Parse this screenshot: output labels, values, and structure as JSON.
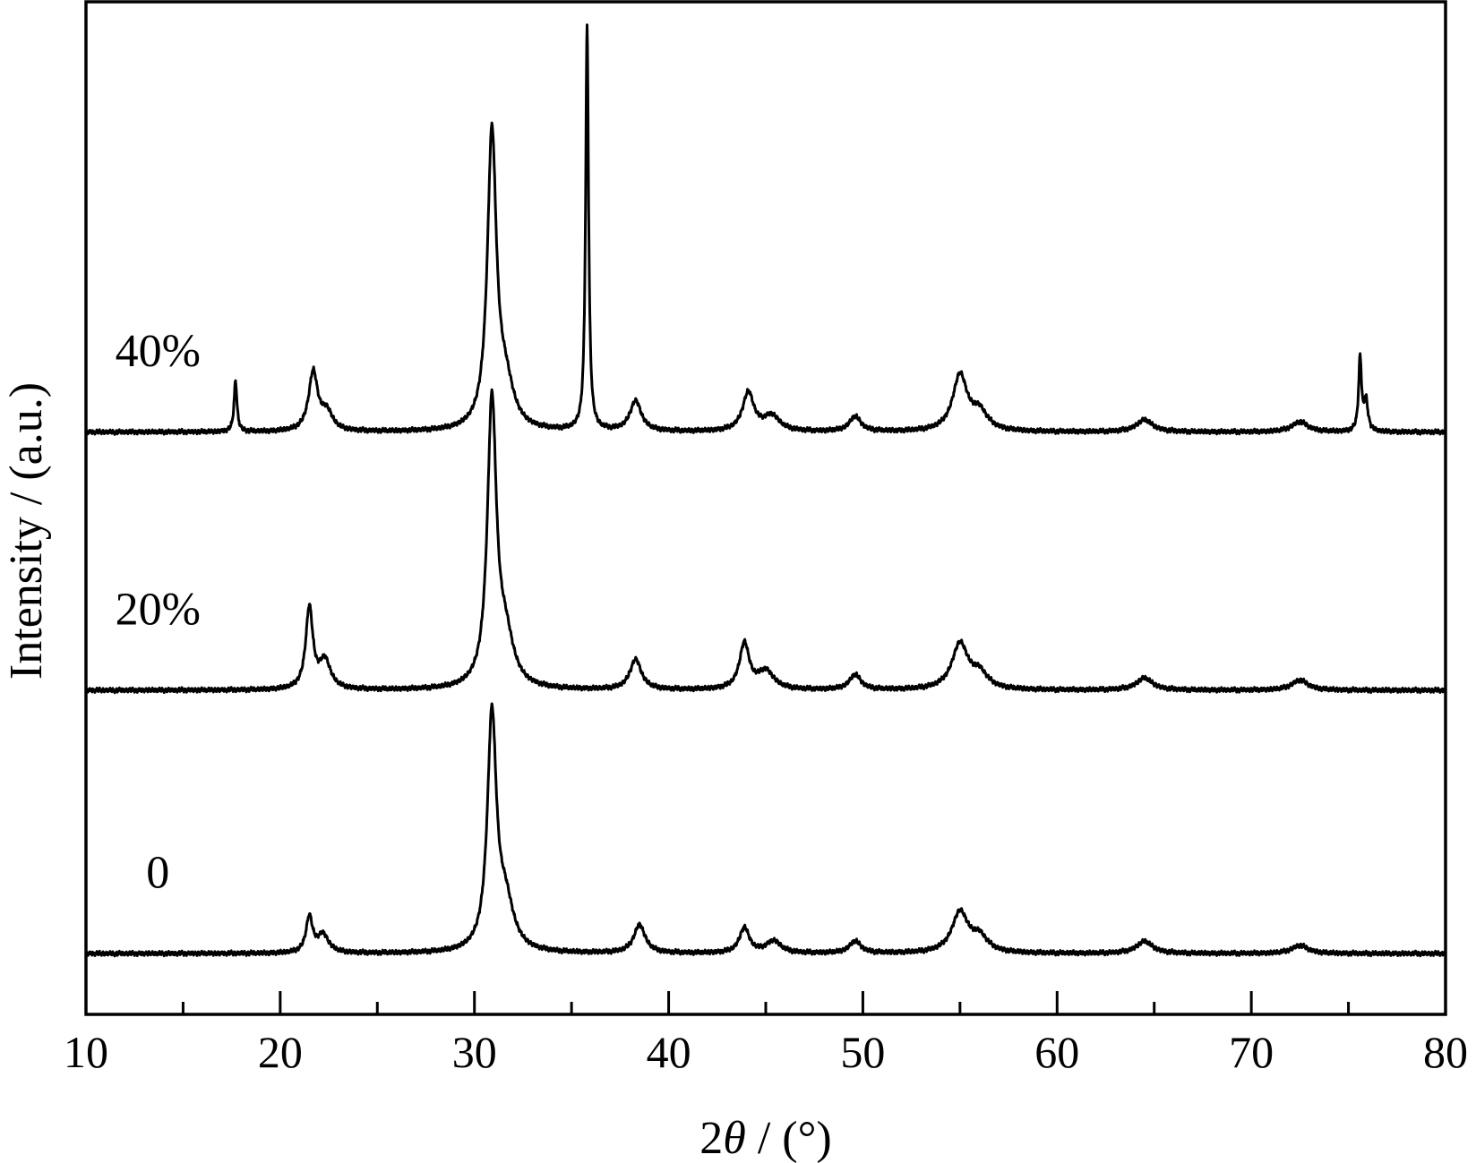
{
  "chart_data": {
    "type": "line",
    "xlabel": {
      "prefix": "2",
      "symbol": "θ",
      "suffix": " / (°)"
    },
    "ylabel": "Intensity / (a.u.)",
    "xlim": [
      10,
      80
    ],
    "x_major_ticks": [
      10,
      20,
      30,
      40,
      50,
      60,
      70,
      80
    ],
    "x_minor_ticks": [
      15,
      25,
      35,
      45,
      55,
      65,
      75
    ],
    "y_ticks_labeled": false,
    "grid": false,
    "legend": "none (series labeled inline)",
    "line_color": "#000000",
    "series": [
      {
        "name": "0",
        "offset": 0.6,
        "peaks": [
          {
            "x": 21.5,
            "height": 0.35,
            "width": 0.2
          },
          {
            "x": 22.2,
            "height": 0.18,
            "width": 0.35
          },
          {
            "x": 30.9,
            "height": 2.3,
            "width": 0.28
          },
          {
            "x": 31.6,
            "height": 0.45,
            "width": 0.5
          },
          {
            "x": 38.5,
            "height": 0.28,
            "width": 0.35
          },
          {
            "x": 43.9,
            "height": 0.25,
            "width": 0.3
          },
          {
            "x": 45.4,
            "height": 0.12,
            "width": 0.45
          },
          {
            "x": 49.6,
            "height": 0.12,
            "width": 0.35
          },
          {
            "x": 55.0,
            "height": 0.4,
            "width": 0.5
          },
          {
            "x": 56.0,
            "height": 0.15,
            "width": 0.5
          },
          {
            "x": 64.5,
            "height": 0.12,
            "width": 0.5
          },
          {
            "x": 72.5,
            "height": 0.08,
            "width": 0.5
          }
        ]
      },
      {
        "name": "20%",
        "offset": 3.2,
        "peaks": [
          {
            "x": 21.5,
            "height": 0.8,
            "width": 0.22
          },
          {
            "x": 22.3,
            "height": 0.28,
            "width": 0.35
          },
          {
            "x": 30.9,
            "height": 2.8,
            "width": 0.28
          },
          {
            "x": 31.6,
            "height": 0.45,
            "width": 0.5
          },
          {
            "x": 38.3,
            "height": 0.3,
            "width": 0.35
          },
          {
            "x": 43.9,
            "height": 0.45,
            "width": 0.3
          },
          {
            "x": 45.0,
            "height": 0.18,
            "width": 0.5
          },
          {
            "x": 49.6,
            "height": 0.15,
            "width": 0.35
          },
          {
            "x": 55.0,
            "height": 0.45,
            "width": 0.5
          },
          {
            "x": 56.0,
            "height": 0.15,
            "width": 0.5
          },
          {
            "x": 64.5,
            "height": 0.12,
            "width": 0.5
          },
          {
            "x": 72.5,
            "height": 0.1,
            "width": 0.5
          }
        ]
      },
      {
        "name": "40%",
        "offset": 5.75,
        "peaks": [
          {
            "x": 17.7,
            "height": 0.5,
            "width": 0.09
          },
          {
            "x": 21.7,
            "height": 0.58,
            "width": 0.28
          },
          {
            "x": 22.4,
            "height": 0.18,
            "width": 0.35
          },
          {
            "x": 30.9,
            "height": 2.9,
            "width": 0.28
          },
          {
            "x": 31.6,
            "height": 0.4,
            "width": 0.5
          },
          {
            "x": 35.8,
            "height": 4.0,
            "width": 0.09
          },
          {
            "x": 38.3,
            "height": 0.3,
            "width": 0.35
          },
          {
            "x": 44.1,
            "height": 0.38,
            "width": 0.35
          },
          {
            "x": 45.3,
            "height": 0.15,
            "width": 0.5
          },
          {
            "x": 49.6,
            "height": 0.15,
            "width": 0.35
          },
          {
            "x": 55.0,
            "height": 0.55,
            "width": 0.45
          },
          {
            "x": 56.0,
            "height": 0.18,
            "width": 0.5
          },
          {
            "x": 64.5,
            "height": 0.12,
            "width": 0.5
          },
          {
            "x": 72.5,
            "height": 0.1,
            "width": 0.5
          },
          {
            "x": 75.6,
            "height": 0.72,
            "width": 0.09
          },
          {
            "x": 75.9,
            "height": 0.3,
            "width": 0.12
          }
        ]
      }
    ]
  }
}
